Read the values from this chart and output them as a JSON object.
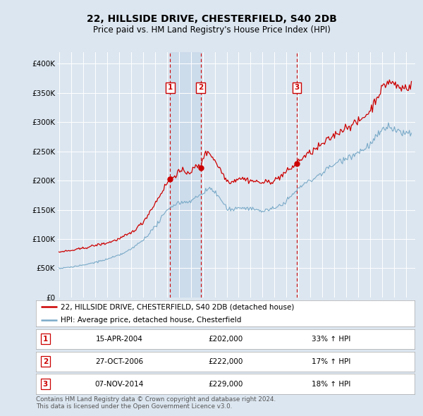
{
  "title": "22, HILLSIDE DRIVE, CHESTERFIELD, S40 2DB",
  "subtitle": "Price paid vs. HM Land Registry's House Price Index (HPI)",
  "background_color": "#dce6f0",
  "plot_bg_color": "#dce6f0",
  "ylim": [
    0,
    420000
  ],
  "yticks": [
    0,
    50000,
    100000,
    150000,
    200000,
    250000,
    300000,
    350000,
    400000
  ],
  "ytick_labels": [
    "£0",
    "£50K",
    "£100K",
    "£150K",
    "£200K",
    "£250K",
    "£300K",
    "£350K",
    "£400K"
  ],
  "red_line_color": "#cc0000",
  "blue_line_color": "#7aaac8",
  "vline_color": "#cc0000",
  "shade_color": "#c8d8ea",
  "transactions": [
    {
      "label": "1",
      "date_num": 2004.29,
      "price": 202000,
      "pct": "33%",
      "date_str": "15-APR-2004"
    },
    {
      "label": "2",
      "date_num": 2006.83,
      "price": 222000,
      "pct": "17%",
      "date_str": "27-OCT-2006"
    },
    {
      "label": "3",
      "date_num": 2014.85,
      "price": 229000,
      "pct": "18%",
      "date_str": "07-NOV-2014"
    }
  ],
  "legend_label_red": "22, HILLSIDE DRIVE, CHESTERFIELD, S40 2DB (detached house)",
  "legend_label_blue": "HPI: Average price, detached house, Chesterfield",
  "footnote": "Contains HM Land Registry data © Crown copyright and database right 2024.\nThis data is licensed under the Open Government Licence v3.0."
}
